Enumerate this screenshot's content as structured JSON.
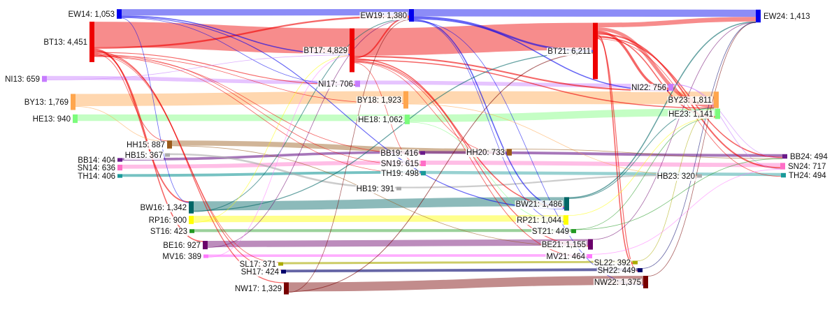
{
  "nodes": [
    {
      "id": "EW14",
      "label": "EW14: 1,053",
      "value": 1053,
      "color": "#0000ee"
    },
    {
      "id": "BT13",
      "label": "BT13: 4,451",
      "value": 4451,
      "color": "#ee0000"
    },
    {
      "id": "NI13",
      "label": "NI13: 659",
      "value": 659,
      "color": "#c77cff"
    },
    {
      "id": "BY13",
      "label": "BY13: 1,769",
      "value": 1769,
      "color": "#ffa64d"
    },
    {
      "id": "HE13",
      "label": "HE13: 940",
      "value": 940,
      "color": "#7cfc7c"
    },
    {
      "id": "HH15",
      "label": "HH15: 887",
      "value": 887,
      "color": "#9a5a1a"
    },
    {
      "id": "BB14",
      "label": "BB14: 404",
      "value": 404,
      "color": "#6a1a8a"
    },
    {
      "id": "HB15",
      "label": "HB15: 367",
      "value": 367,
      "color": "#aaaaaa"
    },
    {
      "id": "SN14",
      "label": "SN14: 636",
      "value": 636,
      "color": "#ff6ec7"
    },
    {
      "id": "TH14",
      "label": "TH14: 406",
      "value": 406,
      "color": "#1a9a9a"
    },
    {
      "id": "BW16",
      "label": "BW16: 1,342",
      "value": 1342,
      "color": "#006666"
    },
    {
      "id": "RP16",
      "label": "RP16: 900",
      "value": 900,
      "color": "#ffff00"
    },
    {
      "id": "ST16",
      "label": "ST16: 423",
      "value": 423,
      "color": "#229922"
    },
    {
      "id": "BE16",
      "label": "BE16: 927",
      "value": 927,
      "color": "#6a006a"
    },
    {
      "id": "MV16",
      "label": "MV16: 389",
      "value": 389,
      "color": "#ff77ff"
    },
    {
      "id": "SL17",
      "label": "SL17: 371",
      "value": 371,
      "color": "#aaaa00"
    },
    {
      "id": "SH17",
      "label": "SH17: 424",
      "value": 424,
      "color": "#00006a"
    },
    {
      "id": "NW17",
      "label": "NW17: 1,329",
      "value": 1329,
      "color": "#770000"
    },
    {
      "id": "EW19",
      "label": "EW19: 1,380",
      "value": 1380,
      "color": "#0000ee"
    },
    {
      "id": "BT17",
      "label": "BT17: 4,829",
      "value": 4829,
      "color": "#ee0000"
    },
    {
      "id": "NI17",
      "label": "NI17: 706",
      "value": 706,
      "color": "#c77cff"
    },
    {
      "id": "BY18",
      "label": "BY18: 1,923",
      "value": 1923,
      "color": "#ffa64d"
    },
    {
      "id": "HE18",
      "label": "HE18: 1,062",
      "value": 1062,
      "color": "#7cfc7c"
    },
    {
      "id": "BB19",
      "label": "BB19: 416",
      "value": 416,
      "color": "#6a1a8a"
    },
    {
      "id": "SN19",
      "label": "SN19: 615",
      "value": 615,
      "color": "#ff6ec7"
    },
    {
      "id": "TH19",
      "label": "TH19: 498",
      "value": 498,
      "color": "#1a9a9a"
    },
    {
      "id": "HB19",
      "label": "HB19: 391",
      "value": 391,
      "color": "#aaaaaa"
    },
    {
      "id": "HH20",
      "label": "HH20: 733",
      "value": 733,
      "color": "#9a5a1a"
    },
    {
      "id": "BT21",
      "label": "BT21: 6,211",
      "value": 6211,
      "color": "#ee0000"
    },
    {
      "id": "NI22",
      "label": "NI22: 756",
      "value": 756,
      "color": "#c77cff"
    },
    {
      "id": "BY23",
      "label": "BY23: 1,811",
      "value": 1811,
      "color": "#ffa64d"
    },
    {
      "id": "HE23",
      "label": "HE23: 1,141",
      "value": 1141,
      "color": "#7cfc7c"
    },
    {
      "id": "HB23",
      "label": "HB23: 320",
      "value": 320,
      "color": "#aaaaaa"
    },
    {
      "id": "BW21",
      "label": "BW21: 1,486",
      "value": 1486,
      "color": "#006666"
    },
    {
      "id": "RP21",
      "label": "RP21: 1,044",
      "value": 1044,
      "color": "#ffff00"
    },
    {
      "id": "ST21",
      "label": "ST21: 449",
      "value": 449,
      "color": "#229922"
    },
    {
      "id": "BE21",
      "label": "BE21: 1,155",
      "value": 1155,
      "color": "#6a006a"
    },
    {
      "id": "MV21",
      "label": "MV21: 464",
      "value": 464,
      "color": "#ff77ff"
    },
    {
      "id": "SL22",
      "label": "SL22: 392",
      "value": 392,
      "color": "#aaaa00"
    },
    {
      "id": "SH22",
      "label": "SH22: 449",
      "value": 449,
      "color": "#00006a"
    },
    {
      "id": "NW22",
      "label": "NW22: 1,375",
      "value": 1375,
      "color": "#770000"
    },
    {
      "id": "EW24",
      "label": "EW24: 1,413",
      "value": 1413,
      "color": "#0000ee"
    },
    {
      "id": "BB24",
      "label": "BB24: 494",
      "value": 494,
      "color": "#6a1a8a"
    },
    {
      "id": "SN24",
      "label": "SN24: 717",
      "value": 717,
      "color": "#ff6ec7"
    },
    {
      "id": "TH24",
      "label": "TH24: 494",
      "value": 494,
      "color": "#1a9a9a"
    }
  ],
  "links": [
    {
      "source": "BT13",
      "target": "BT17",
      "value": 2800
    },
    {
      "source": "BT17",
      "target": "BT21",
      "value": 3000
    },
    {
      "source": "BT21",
      "target": "EW24",
      "value": 500
    },
    {
      "source": "BT21",
      "target": "BY23",
      "value": 380
    },
    {
      "source": "BT21",
      "target": "SL22",
      "value": 120
    },
    {
      "source": "BT21",
      "target": "NI22",
      "value": 260
    },
    {
      "source": "BT21",
      "target": "HE23",
      "value": 120
    },
    {
      "source": "BT21",
      "target": "BB24",
      "value": 120
    },
    {
      "source": "BT21",
      "target": "SN24",
      "value": 160
    },
    {
      "source": "BT21",
      "target": "SH22",
      "value": 90
    },
    {
      "source": "BT21",
      "target": "TH24",
      "value": 60
    },
    {
      "source": "BT17",
      "target": "EW19",
      "value": 150
    },
    {
      "source": "BT17",
      "target": "NI22",
      "value": 160
    },
    {
      "source": "BT17",
      "target": "BW21",
      "value": 120
    },
    {
      "source": "BT17",
      "target": "BE21",
      "value": 90
    },
    {
      "source": "BT17",
      "target": "MV21",
      "value": 70
    },
    {
      "source": "BT17",
      "target": "HH20",
      "value": 60
    },
    {
      "source": "BT17",
      "target": "SN19",
      "value": 60
    },
    {
      "source": "BT17",
      "target": "BY23",
      "value": 120
    },
    {
      "source": "BT13",
      "target": "EW19",
      "value": 180
    },
    {
      "source": "BT13",
      "target": "BW16",
      "value": 140
    },
    {
      "source": "BT13",
      "target": "BE16",
      "value": 120
    },
    {
      "source": "BT13",
      "target": "NW17",
      "value": 100
    },
    {
      "source": "BT13",
      "target": "SH17",
      "value": 80
    },
    {
      "source": "BT13",
      "target": "NI17",
      "value": 90
    },
    {
      "source": "BT13",
      "target": "HH15",
      "value": 70
    },
    {
      "source": "BT13",
      "target": "SN19",
      "value": 60
    },
    {
      "source": "BT13",
      "target": "SL17",
      "value": 60
    },
    {
      "source": "BT13",
      "target": "BB19",
      "value": 50
    },
    {
      "source": "BT13",
      "target": "BY18",
      "value": 60
    },
    {
      "source": "BT13",
      "target": "TH19",
      "value": 50
    },
    {
      "source": "EW14",
      "target": "EW19",
      "value": 700
    },
    {
      "source": "EW14",
      "target": "BT17",
      "value": 120
    },
    {
      "source": "EW14",
      "target": "BW21",
      "value": 90
    },
    {
      "source": "EW14",
      "target": "NI17",
      "value": 60
    },
    {
      "source": "EW14",
      "target": "BW16",
      "value": 50
    },
    {
      "source": "EW19",
      "target": "EW24",
      "value": 800
    },
    {
      "source": "EW19",
      "target": "BT21",
      "value": 200
    },
    {
      "source": "EW19",
      "target": "NI22",
      "value": 120
    },
    {
      "source": "EW19",
      "target": "BW21",
      "value": 120
    },
    {
      "source": "EW19",
      "target": "RP21",
      "value": 60
    },
    {
      "source": "EW19",
      "target": "NW22",
      "value": 60
    },
    {
      "source": "NI13",
      "target": "NI17",
      "value": 420
    },
    {
      "source": "NI17",
      "target": "NI22",
      "value": 420
    },
    {
      "source": "NI13",
      "target": "BT17",
      "value": 60
    },
    {
      "source": "NI22",
      "target": "BB24",
      "value": 60
    },
    {
      "source": "NI22",
      "target": "SN24",
      "value": 70
    },
    {
      "source": "BY13",
      "target": "BY18",
      "value": 1350
    },
    {
      "source": "BY18",
      "target": "BY23",
      "value": 1400
    },
    {
      "source": "BY18",
      "target": "HB23",
      "value": 50
    },
    {
      "source": "BY13",
      "target": "HH15",
      "value": 60
    },
    {
      "source": "HE13",
      "target": "HE18",
      "value": 720
    },
    {
      "source": "HE18",
      "target": "HE23",
      "value": 820
    },
    {
      "source": "HE18",
      "target": "RP21",
      "value": 60
    },
    {
      "source": "HH15",
      "target": "HH20",
      "value": 560
    },
    {
      "source": "HH20",
      "target": "BB24",
      "value": 50
    },
    {
      "source": "HH15",
      "target": "BE21",
      "value": 60
    },
    {
      "source": "BB14",
      "target": "BB19",
      "value": 280
    },
    {
      "source": "BB19",
      "target": "BB24",
      "value": 300
    },
    {
      "source": "HB15",
      "target": "HB19",
      "value": 200
    },
    {
      "source": "HB19",
      "target": "HB23",
      "value": 170
    },
    {
      "source": "SN14",
      "target": "SN19",
      "value": 440
    },
    {
      "source": "SN19",
      "target": "SN24",
      "value": 460
    },
    {
      "source": "TH14",
      "target": "TH19",
      "value": 300
    },
    {
      "source": "TH19",
      "target": "TH24",
      "value": 340
    },
    {
      "source": "BW16",
      "target": "BW21",
      "value": 1000
    },
    {
      "source": "BW16",
      "target": "EW19",
      "value": 80
    },
    {
      "source": "BW16",
      "target": "BT21",
      "value": 100
    },
    {
      "source": "BW21",
      "target": "EW24",
      "value": 120
    },
    {
      "source": "BW21",
      "target": "BY23",
      "value": 80
    },
    {
      "source": "RP16",
      "target": "RP21",
      "value": 700
    },
    {
      "source": "RP16",
      "target": "BT17",
      "value": 60
    },
    {
      "source": "RP21",
      "target": "HE23",
      "value": 60
    },
    {
      "source": "ST16",
      "target": "ST21",
      "value": 320
    },
    {
      "source": "ST21",
      "target": "HE23",
      "value": 50
    },
    {
      "source": "BE16",
      "target": "BE21",
      "value": 700
    },
    {
      "source": "BE16",
      "target": "EW19",
      "value": 60
    },
    {
      "source": "BE21",
      "target": "EW24",
      "value": 60
    },
    {
      "source": "MV16",
      "target": "MV21",
      "value": 280
    },
    {
      "source": "MV16",
      "target": "BT17",
      "value": 50
    },
    {
      "source": "SL17",
      "target": "SL22",
      "value": 230
    },
    {
      "source": "SH17",
      "target": "SH22",
      "value": 300
    },
    {
      "source": "NW17",
      "target": "NW22",
      "value": 1000
    },
    {
      "source": "NW17",
      "target": "BT21",
      "value": 80
    },
    {
      "source": "NW17",
      "target": "EW19",
      "value": 60
    },
    {
      "source": "NW22",
      "target": "EW24",
      "value": 60
    },
    {
      "source": "SH22",
      "target": "EW24",
      "value": 40
    },
    {
      "source": "SL22",
      "target": "BY23",
      "value": 40
    },
    {
      "source": "MV21",
      "target": "SN24",
      "value": 40
    },
    {
      "source": "ST21",
      "target": "BB24",
      "value": 30
    }
  ]
}
